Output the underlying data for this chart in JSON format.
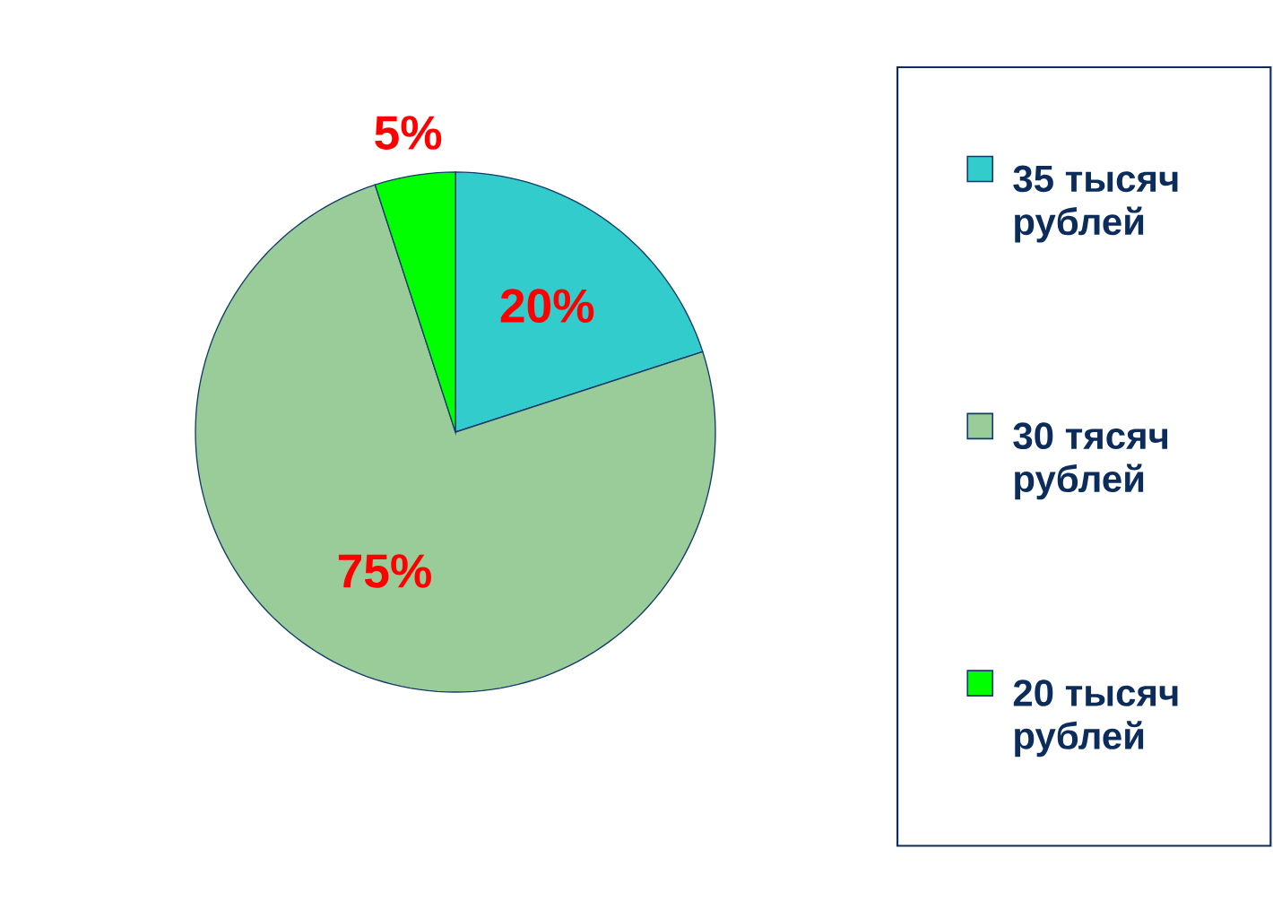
{
  "chart_data": {
    "type": "pie",
    "categories": [
      "35 тысяч рублей",
      "30 тясяч рублей",
      "20 тысяч рублей"
    ],
    "values": [
      20,
      75,
      5
    ],
    "colors": [
      "#33cccc",
      "#99cc99",
      "#00ff00"
    ],
    "value_labels": [
      "20%",
      "75%",
      "5%"
    ],
    "legend": "right"
  }
}
